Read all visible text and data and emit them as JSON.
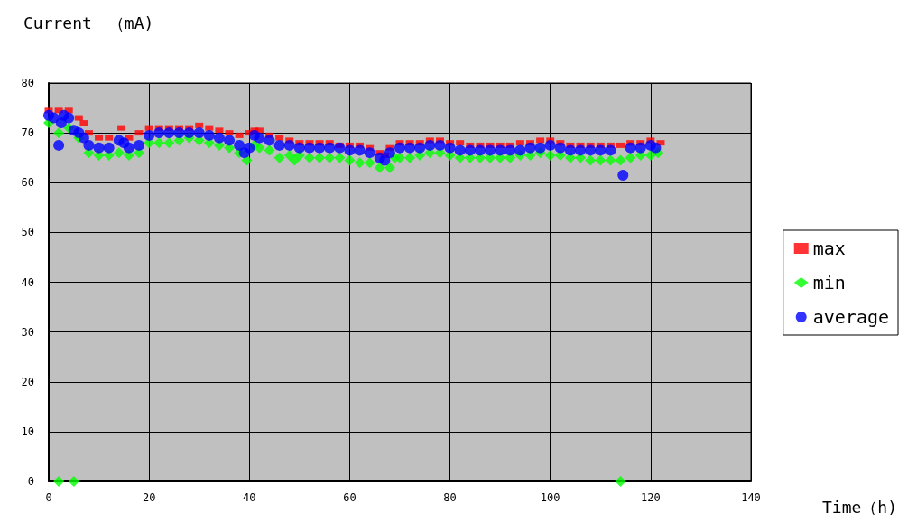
{
  "chart_data": {
    "type": "scatter",
    "ylabel": "Current　（mA)",
    "xlabel": "Time（h)",
    "xlim": [
      0,
      140
    ],
    "xticks": [
      0,
      20,
      40,
      60,
      80,
      100,
      120,
      140
    ],
    "ylim": [
      0,
      80
    ],
    "yticks": [
      0,
      10,
      20,
      30,
      40,
      50,
      60,
      70,
      80
    ],
    "grid": true,
    "legend": "right",
    "series": [
      {
        "name": "max",
        "color": "#ff0000",
        "marker": "square",
        "x": [
          0,
          2,
          4,
          6,
          7,
          8,
          10,
          12,
          14,
          14.5,
          16,
          18,
          20,
          22,
          24,
          26,
          28,
          30,
          32,
          34,
          36,
          38,
          40,
          41,
          42,
          44,
          46,
          48,
          50,
          52,
          54,
          56,
          58,
          60,
          62,
          64,
          66,
          67,
          68,
          70,
          72,
          74,
          76,
          78,
          80,
          82,
          84,
          86,
          88,
          90,
          92,
          94,
          96,
          98,
          100,
          102,
          104,
          106,
          108,
          110,
          112,
          114,
          116,
          118,
          120,
          122
        ],
        "values": [
          74.5,
          74.5,
          74.5,
          73,
          72,
          70,
          69,
          69,
          null,
          71,
          69,
          70,
          71,
          71,
          71,
          71,
          71,
          71.5,
          71,
          70.5,
          70,
          69.5,
          70,
          70.5,
          70.5,
          69.5,
          69,
          68.5,
          68,
          68,
          68,
          68,
          67.5,
          67.5,
          67.5,
          67,
          66,
          65.5,
          67,
          68,
          68,
          68,
          68.5,
          68.5,
          68,
          68,
          67.5,
          67.5,
          67.5,
          67.5,
          67.5,
          68,
          68,
          68.5,
          68.5,
          68,
          67.5,
          67.5,
          67.5,
          67.5,
          67.5,
          67.5,
          68,
          68,
          68.5,
          68
        ]
      },
      {
        "name": "min",
        "color": "#00ff00",
        "marker": "diamond",
        "x": [
          0,
          2,
          2,
          4,
          5,
          6,
          8,
          10,
          12,
          14,
          16,
          18,
          20,
          22,
          24,
          26,
          28,
          30,
          32,
          34,
          36,
          38,
          39.5,
          41,
          42,
          44,
          46,
          48,
          49,
          50,
          52,
          54,
          56,
          58,
          60,
          62,
          64,
          66,
          68,
          69,
          70,
          72,
          74,
          76,
          78,
          80,
          82,
          84,
          86,
          88,
          90,
          92,
          94,
          96,
          98,
          100,
          102,
          104,
          106,
          108,
          110,
          112,
          114,
          114,
          116,
          118,
          120,
          121.5
        ],
        "values": [
          72,
          70,
          0,
          71,
          0,
          69,
          66,
          65.5,
          65.5,
          66,
          65.5,
          66,
          68,
          68,
          68,
          68.5,
          69,
          68.5,
          68,
          67.5,
          67,
          66,
          64.5,
          67.5,
          67,
          66.5,
          65,
          65.5,
          64.5,
          65.5,
          65,
          65,
          65,
          65,
          64.5,
          64,
          64,
          63,
          63,
          65,
          65,
          65,
          65.5,
          66,
          66,
          65.5,
          65,
          65,
          65,
          65,
          65,
          65,
          65.5,
          65.5,
          66,
          65.5,
          65.5,
          65,
          65,
          64.5,
          64.5,
          64.5,
          64.5,
          0,
          65,
          65.5,
          65.5,
          66
        ]
      },
      {
        "name": "average",
        "color": "#0000ff",
        "marker": "circle",
        "x": [
          0,
          1,
          2,
          2.5,
          3,
          4,
          5,
          6,
          7,
          8,
          10,
          12,
          14,
          15,
          16,
          18,
          20,
          22,
          24,
          26,
          28,
          30,
          32,
          34,
          36,
          38,
          39,
          40,
          41,
          42,
          44,
          46,
          48,
          50,
          52,
          54,
          56,
          58,
          60,
          62,
          64,
          66,
          67,
          68,
          70,
          72,
          74,
          76,
          78,
          80,
          82,
          84,
          86,
          88,
          90,
          92,
          94,
          96,
          98,
          100,
          102,
          104,
          106,
          108,
          110,
          112,
          114.5,
          116,
          118,
          120,
          121
        ],
        "values": [
          73.5,
          73,
          67.5,
          72,
          73.5,
          73,
          70.5,
          70,
          69,
          67.5,
          67,
          67,
          68.5,
          68,
          67,
          67.5,
          69.5,
          70,
          70,
          70,
          70,
          70,
          69.5,
          69,
          68.5,
          67.5,
          66,
          67,
          69.5,
          69,
          68.5,
          67.5,
          67.5,
          67,
          67,
          67,
          67,
          67,
          66.5,
          66.5,
          66,
          65,
          64.5,
          66,
          67,
          67,
          67,
          67.5,
          67.5,
          67,
          66.5,
          66.5,
          66.5,
          66.5,
          66.5,
          66.5,
          66.5,
          67,
          67,
          67.5,
          67,
          66.5,
          66.5,
          66.5,
          66.5,
          66.5,
          61.5,
          67,
          67,
          67.5,
          67
        ]
      }
    ]
  }
}
